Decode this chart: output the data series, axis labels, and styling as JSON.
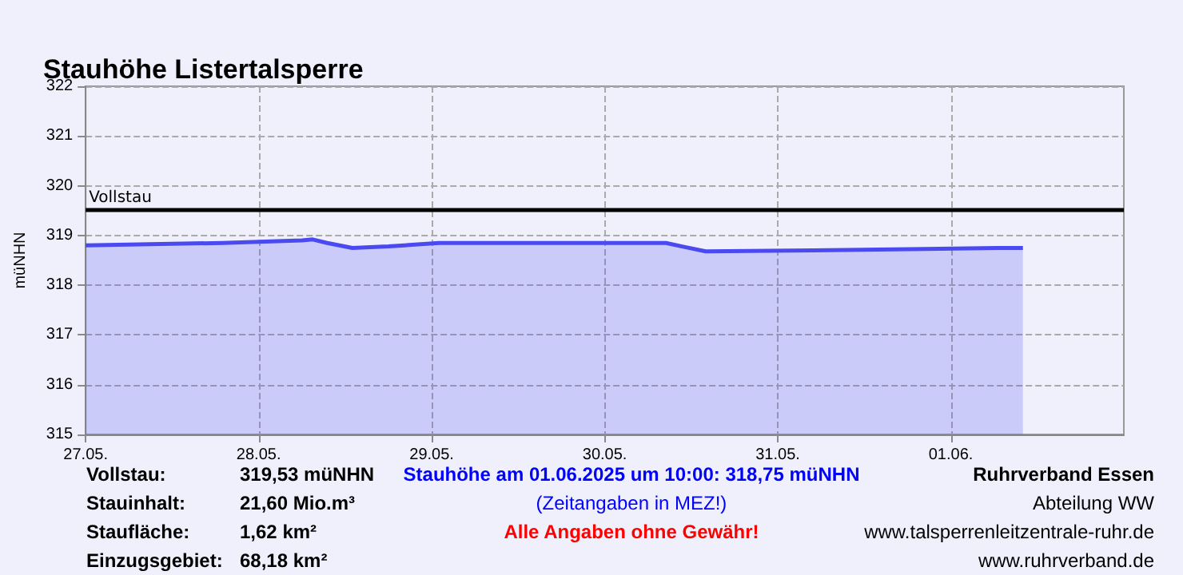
{
  "chart_data": {
    "type": "area",
    "title": "Stauhöhe Listertalsperre",
    "ylabel": "müNHN",
    "x": [
      "2025-05-27T00:00",
      "2025-05-27T19:00",
      "2025-05-28T06:00",
      "2025-05-28T07:30",
      "2025-05-28T09:30",
      "2025-05-28T13:00",
      "2025-05-28T18:00",
      "2025-05-29T01:00",
      "2025-05-30T08:30",
      "2025-05-30T11:00",
      "2025-05-30T14:00",
      "2025-05-31T05:00",
      "2025-05-31T20:30",
      "2025-06-01T06:30",
      "2025-06-01T10:00"
    ],
    "series": [
      {
        "color": "#4a4af0",
        "values": [
          318.8,
          318.85,
          318.9,
          318.92,
          318.85,
          318.75,
          318.78,
          318.85,
          318.85,
          318.77,
          318.68,
          318.7,
          318.73,
          318.75,
          318.75
        ]
      }
    ],
    "xlim": [
      "2025-05-27",
      "2025-06-02"
    ],
    "xticks": [
      {
        "value": "2025-05-27",
        "label": "27.05."
      },
      {
        "value": "2025-05-28",
        "label": "28.05."
      },
      {
        "value": "2025-05-29",
        "label": "29.05."
      },
      {
        "value": "2025-05-30",
        "label": "30.05."
      },
      {
        "value": "2025-05-31",
        "label": "31.05."
      },
      {
        "value": "2025-06-01",
        "label": "01.06."
      }
    ],
    "ylim": [
      315,
      322
    ],
    "yticks": [
      315,
      316,
      317,
      318,
      319,
      320,
      321,
      322
    ],
    "grid": true,
    "marker": "none",
    "line_style": "solid",
    "ref_lines": [
      {
        "axis": "y",
        "value": 319.53,
        "label": "Vollstau",
        "color": "#000000"
      }
    ],
    "annotations": [
      "Vollstau:",
      "319,53 müNHN",
      "Stauhöhe am 01.06.2025 um 10:00: 318,75  müNHN",
      "Ruhrverband Essen",
      "Stauinhalt:",
      "21,60 Mio.m³",
      "(Zeitangaben in MEZ!)",
      "Abteilung WW",
      "Staufläche:",
      "1,62 km²",
      "Alle Angaben ohne Gewähr!",
      "www.talsperrenleitzentrale-ruhr.de",
      "Einzugsgebiet:",
      "68,18 km²",
      "www.ruhrverband.de"
    ]
  }
}
